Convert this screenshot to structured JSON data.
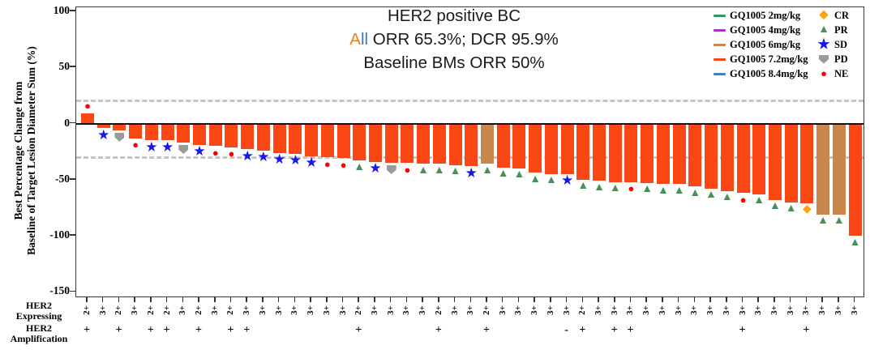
{
  "title": {
    "line1": "HER2 positive BC",
    "orr_a": "A",
    "orr_ll": "ll",
    "orr_rest": " ORR 65.3%; DCR 95.9%",
    "line3": "Baseline BMs ORR 50%"
  },
  "colors": {
    "title_a_orange": "#E8821E",
    "title_ll_blue": "#4472C4",
    "threshold_gray": "#C4C4C4",
    "dose_colors": {
      "2mg/kg": "#2E9960",
      "4mg/kg": "#A234C9",
      "6mg/kg": "#C9874D",
      "7.2mg/kg": "#FB4616",
      "8.4mg/kg": "#4A7EBB"
    },
    "response_colors": {
      "CR": "#FFA116",
      "PR": "#4A9158",
      "SD": "#1717E8",
      "PD": "#9A9A9A",
      "NE": "#FE0000"
    }
  },
  "markers": {
    "CR": "◆",
    "PR": "▲",
    "SD": "★",
    "NE": "●"
  },
  "y_axis": {
    "title_line1": "Best Percentage Change from",
    "title_line2": "Baseline of Target Lesion Diameter Sum (%)",
    "ticks": [
      100,
      50,
      0,
      -50,
      -100,
      -150
    ]
  },
  "row_headers": {
    "expressing_l1": "HER2",
    "expressing_l2": "Expressing",
    "amplification_l1": "HER2",
    "amplification_l2": "Amplification"
  },
  "legend": {
    "doses": [
      {
        "label": "GQ1005 2mg/kg",
        "dose": "2mg/kg"
      },
      {
        "label": "GQ1005 4mg/kg",
        "dose": "4mg/kg"
      },
      {
        "label": "GQ1005 6mg/kg",
        "dose": "6mg/kg"
      },
      {
        "label": "GQ1005 7.2mg/kg",
        "dose": "7.2mg/kg"
      },
      {
        "label": "GQ1005 8.4mg/kg",
        "dose": "8.4mg/kg"
      }
    ],
    "responses": [
      {
        "label": "CR"
      },
      {
        "label": "PR"
      },
      {
        "label": "SD"
      },
      {
        "label": "PD"
      },
      {
        "label": "NE"
      }
    ]
  },
  "chart_data": {
    "type": "bar",
    "title": "HER2 positive BC waterfall: All ORR 65.3%; DCR 95.9%; Baseline BMs ORR 50%",
    "ylabel": "Best Percentage Change from Baseline of Target Lesion Diameter Sum (%)",
    "ylim": [
      -150,
      100
    ],
    "thresholds": [
      20,
      -30
    ],
    "grid": false,
    "legend_position": "top-right",
    "default_dose": "7.2mg/kg",
    "bars": [
      {
        "v": 9,
        "r": "NE",
        "e": "2+",
        "a": "+"
      },
      {
        "v": -4,
        "r": "SD",
        "e": "3+",
        "a": ""
      },
      {
        "v": -6,
        "r": "PD",
        "e": "2+",
        "a": "+"
      },
      {
        "v": -13,
        "r": "NE",
        "e": "3+",
        "a": ""
      },
      {
        "v": -15,
        "r": "SD",
        "e": "2+",
        "a": "+"
      },
      {
        "v": -15,
        "r": "SD",
        "e": "2+",
        "a": "+"
      },
      {
        "v": -17,
        "r": "PD",
        "e": "3+",
        "a": ""
      },
      {
        "v": -19,
        "r": "SD",
        "e": "2+",
        "a": "+"
      },
      {
        "v": -20,
        "r": "NE",
        "e": "3+",
        "a": ""
      },
      {
        "v": -21,
        "r": "NE",
        "e": "2+",
        "a": "+"
      },
      {
        "v": -23,
        "r": "SD",
        "e": "3+",
        "a": "+"
      },
      {
        "v": -24,
        "r": "SD",
        "e": "3+",
        "a": ""
      },
      {
        "v": -26,
        "r": "SD",
        "e": "3+",
        "a": ""
      },
      {
        "v": -27,
        "r": "SD",
        "e": "3+",
        "a": ""
      },
      {
        "v": -29,
        "r": "SD",
        "e": "3+",
        "a": ""
      },
      {
        "v": -30,
        "r": "NE",
        "e": "3+",
        "a": ""
      },
      {
        "v": -31,
        "r": "NE",
        "e": "3+",
        "a": ""
      },
      {
        "v": -33,
        "r": "PR",
        "e": "2+",
        "a": "+"
      },
      {
        "v": -34,
        "r": "SD",
        "e": "3+",
        "a": ""
      },
      {
        "v": -35,
        "r": "PD",
        "e": "3+",
        "a": ""
      },
      {
        "v": -35,
        "r": "NE",
        "e": "3+",
        "a": ""
      },
      {
        "v": -36,
        "r": "PR",
        "e": "3+",
        "a": ""
      },
      {
        "v": -36,
        "r": "PR",
        "e": "2+",
        "a": "+"
      },
      {
        "v": -37,
        "r": "PR",
        "e": "3+",
        "a": ""
      },
      {
        "v": -38,
        "r": "SD",
        "e": "3+",
        "a": ""
      },
      {
        "v": -36,
        "r": "PR",
        "e": "2+",
        "a": "+",
        "dose": "6mg/kg"
      },
      {
        "v": -39,
        "r": "PR",
        "e": "3+",
        "a": ""
      },
      {
        "v": -40,
        "r": "PR",
        "e": "3+",
        "a": ""
      },
      {
        "v": -44,
        "r": "PR",
        "e": "3+",
        "a": ""
      },
      {
        "v": -45,
        "r": "PR",
        "e": "3+",
        "a": ""
      },
      {
        "v": -45,
        "r": "SD",
        "e": "3+",
        "a": "-"
      },
      {
        "v": -50,
        "r": "PR",
        "e": "2+",
        "a": "+"
      },
      {
        "v": -51,
        "r": "PR",
        "e": "3+",
        "a": ""
      },
      {
        "v": -52,
        "r": "PR",
        "e": "3+",
        "a": "+"
      },
      {
        "v": -52,
        "r": "NE",
        "e": "3+",
        "a": "+"
      },
      {
        "v": -53,
        "r": "PR",
        "e": "3+",
        "a": ""
      },
      {
        "v": -54,
        "r": "PR",
        "e": "3+",
        "a": ""
      },
      {
        "v": -54,
        "r": "PR",
        "e": "3+",
        "a": ""
      },
      {
        "v": -56,
        "r": "PR",
        "e": "3+",
        "a": ""
      },
      {
        "v": -58,
        "r": "PR",
        "e": "3+",
        "a": ""
      },
      {
        "v": -60,
        "r": "PR",
        "e": "3+",
        "a": ""
      },
      {
        "v": -62,
        "r": "NE",
        "e": "3+",
        "a": "+"
      },
      {
        "v": -63,
        "r": "PR",
        "e": "3+",
        "a": ""
      },
      {
        "v": -68,
        "r": "PR",
        "e": "3+",
        "a": ""
      },
      {
        "v": -70,
        "r": "PR",
        "e": "3+",
        "a": ""
      },
      {
        "v": -71,
        "r": "CR",
        "e": "3+",
        "a": "+"
      },
      {
        "v": -81,
        "r": "PR",
        "e": "3+",
        "a": "",
        "dose": "6mg/kg"
      },
      {
        "v": -81,
        "r": "PR",
        "e": "3+",
        "a": "",
        "dose": "6mg/kg"
      },
      {
        "v": -100,
        "r": "PR",
        "e": "3+",
        "a": ""
      }
    ]
  }
}
